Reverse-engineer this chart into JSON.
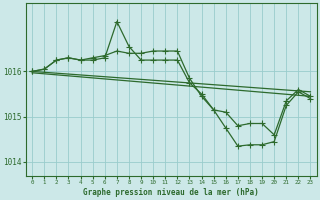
{
  "bg_color": "#cce8e8",
  "line_color": "#2d6a2d",
  "grid_color": "#99cccc",
  "title": "Graphe pression niveau de la mer (hPa)",
  "xlim": [
    -0.5,
    23.5
  ],
  "ylim": [
    1013.7,
    1017.5
  ],
  "yticks": [
    1014,
    1015,
    1016
  ],
  "xticks": [
    0,
    1,
    2,
    3,
    4,
    5,
    6,
    7,
    8,
    9,
    10,
    11,
    12,
    13,
    14,
    15,
    16,
    17,
    18,
    19,
    20,
    21,
    22,
    23
  ],
  "series": [
    {
      "x": [
        0,
        23
      ],
      "y": [
        1016.0,
        1015.55
      ],
      "marker": null,
      "linewidth": 0.9
    },
    {
      "x": [
        0,
        23
      ],
      "y": [
        1015.97,
        1015.45
      ],
      "marker": null,
      "linewidth": 0.9
    },
    {
      "x": [
        0,
        1,
        2,
        3,
        4,
        5,
        6,
        7,
        8,
        9,
        10,
        11,
        12,
        13,
        14,
        15,
        16,
        17,
        18,
        19,
        20,
        21,
        22,
        23
      ],
      "y": [
        1016.0,
        1016.05,
        1016.25,
        1016.3,
        1016.25,
        1016.25,
        1016.3,
        1017.1,
        1016.55,
        1016.25,
        1016.25,
        1016.25,
        1016.25,
        1015.75,
        1015.5,
        1015.15,
        1015.1,
        1014.8,
        1014.85,
        1014.85,
        1014.6,
        1015.35,
        1015.6,
        1015.45
      ],
      "marker": "+",
      "markersize": 4.0,
      "linewidth": 0.9
    },
    {
      "x": [
        0,
        1,
        2,
        3,
        4,
        5,
        6,
        7,
        8,
        9,
        10,
        11,
        12,
        13,
        14,
        15,
        16,
        17,
        18,
        19,
        20,
        21,
        22,
        23
      ],
      "y": [
        1016.0,
        1016.05,
        1016.25,
        1016.3,
        1016.25,
        1016.3,
        1016.35,
        1016.45,
        1016.4,
        1016.4,
        1016.45,
        1016.45,
        1016.45,
        1015.85,
        1015.45,
        1015.15,
        1014.75,
        1014.35,
        1014.38,
        1014.38,
        1014.45,
        1015.25,
        1015.55,
        1015.4
      ],
      "marker": "+",
      "markersize": 4.0,
      "linewidth": 0.9
    }
  ]
}
